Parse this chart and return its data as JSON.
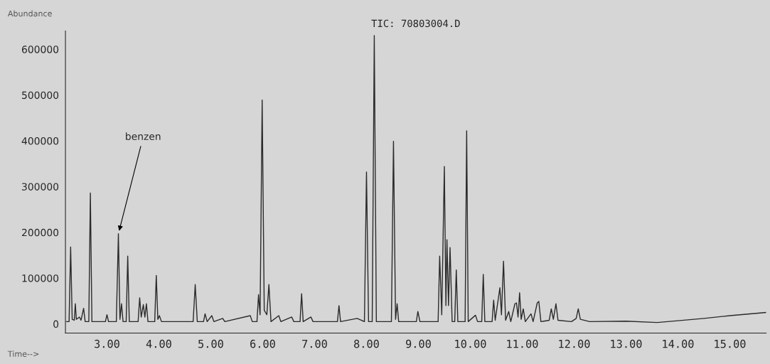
{
  "chart_data": {
    "type": "line",
    "title": "TIC: 70803004.D",
    "ylabel": "Abundance",
    "xlabel": "Time-->",
    "annotations": [
      {
        "text": "benzen",
        "x": 3.22,
        "y": 197000
      }
    ],
    "xlim": [
      2.2,
      15.7
    ],
    "ylim": [
      -20000,
      640000
    ],
    "xticks": [
      {
        "value": 3,
        "label": "3.00"
      },
      {
        "value": 4,
        "label": "4.00"
      },
      {
        "value": 5,
        "label": "5.00"
      },
      {
        "value": 6,
        "label": "6.00"
      },
      {
        "value": 7,
        "label": "7.00"
      },
      {
        "value": 8,
        "label": "8.00"
      },
      {
        "value": 9,
        "label": "9.00"
      },
      {
        "value": 10,
        "label": "10.00"
      },
      {
        "value": 11,
        "label": "11.00"
      },
      {
        "value": 12,
        "label": "12.00"
      },
      {
        "value": 13,
        "label": "13.00"
      },
      {
        "value": 14,
        "label": "14.00"
      },
      {
        "value": 15,
        "label": "15.00"
      }
    ],
    "yticks": [
      0,
      100000,
      200000,
      300000,
      400000,
      500000,
      600000
    ],
    "grid": false,
    "legend": false,
    "marker": "none",
    "line_style": "solid",
    "series": [
      {
        "color": "#2a2a2a",
        "x": [
          2.22,
          2.27,
          2.3,
          2.33,
          2.37,
          2.39,
          2.41,
          2.47,
          2.5,
          2.55,
          2.58,
          2.65,
          2.68,
          2.71,
          2.97,
          3.0,
          3.03,
          3.18,
          3.22,
          3.25,
          3.28,
          3.31,
          3.37,
          3.4,
          3.43,
          3.6,
          3.63,
          3.66,
          3.7,
          3.73,
          3.76,
          3.79,
          3.92,
          3.95,
          3.98,
          4.01,
          4.05,
          4.66,
          4.7,
          4.74,
          4.86,
          4.89,
          4.93,
          5.02,
          5.06,
          5.23,
          5.27,
          5.76,
          5.8,
          5.89,
          5.92,
          5.95,
          5.99,
          6.03,
          6.08,
          6.12,
          6.16,
          6.31,
          6.35,
          6.56,
          6.6,
          6.72,
          6.75,
          6.78,
          6.93,
          6.97,
          7.44,
          7.47,
          7.5,
          7.82,
          7.96,
          8.0,
          8.04,
          8.11,
          8.15,
          8.19,
          8.48,
          8.52,
          8.56,
          8.59,
          8.62,
          8.96,
          8.99,
          9.03,
          9.38,
          9.41,
          9.45,
          9.5,
          9.53,
          9.55,
          9.58,
          9.61,
          9.65,
          9.7,
          9.73,
          9.76,
          9.9,
          9.93,
          9.96,
          10.1,
          10.14,
          10.22,
          10.25,
          10.28,
          10.42,
          10.45,
          10.48,
          10.57,
          10.6,
          10.64,
          10.68,
          10.74,
          10.78,
          10.86,
          10.89,
          10.92,
          10.95,
          10.98,
          11.02,
          11.06,
          11.17,
          11.21,
          11.29,
          11.32,
          11.36,
          11.52,
          11.56,
          11.6,
          11.65,
          11.69,
          11.95,
          12.04,
          12.08,
          12.12,
          12.3,
          13.0,
          13.6,
          14.0,
          14.5,
          15.0,
          15.7
        ],
        "values": [
          5000,
          5000,
          168000,
          10000,
          8000,
          44000,
          10000,
          15000,
          8000,
          34000,
          5000,
          5000,
          286000,
          5000,
          5000,
          20000,
          5000,
          5000,
          197000,
          10000,
          44000,
          5000,
          5000,
          148000,
          5000,
          5000,
          57000,
          15000,
          42000,
          15000,
          44000,
          5000,
          5000,
          106000,
          10000,
          18000,
          5000,
          5000,
          86000,
          5000,
          5000,
          22000,
          5000,
          18000,
          5000,
          12000,
          5000,
          18000,
          5000,
          5000,
          64000,
          20000,
          489000,
          30000,
          20000,
          86000,
          5000,
          18000,
          5000,
          15000,
          5000,
          5000,
          66000,
          5000,
          15000,
          5000,
          5000,
          40000,
          5000,
          12000,
          5000,
          332000,
          5000,
          5000,
          630000,
          5000,
          5000,
          399000,
          10000,
          44000,
          5000,
          5000,
          27000,
          5000,
          5000,
          148000,
          20000,
          344000,
          40000,
          184000,
          40000,
          167000,
          5000,
          5000,
          118000,
          5000,
          5000,
          422000,
          5000,
          19000,
          5000,
          5000,
          108000,
          5000,
          5000,
          52000,
          8000,
          79000,
          20000,
          137000,
          8000,
          27000,
          5000,
          44000,
          46000,
          15000,
          68000,
          10000,
          33000,
          5000,
          22000,
          5000,
          46000,
          49000,
          5000,
          8000,
          33000,
          10000,
          44000,
          8000,
          5000,
          12000,
          33000,
          10000,
          5000,
          6000,
          3000,
          7000,
          12000,
          18000,
          25000
        ]
      }
    ]
  }
}
